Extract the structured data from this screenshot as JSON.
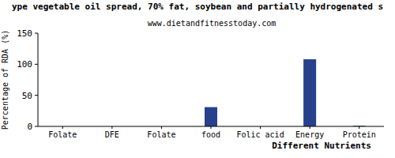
{
  "chart_data": {
    "type": "bar",
    "title": "ype vegetable oil spread, 70% fat, soybean and partially hydrogenated s",
    "subtitle": "www.dietandfitnesstoday.com",
    "x_label": "Different Nutrients",
    "y_label": "Percentage of RDA (%)",
    "categories": [
      "Folate",
      "DFE",
      "Folate",
      "food",
      "Folic acid",
      "Energy",
      "Protein"
    ],
    "values": [
      0,
      0,
      0,
      31,
      0,
      108,
      1
    ],
    "color": "#27418c",
    "ylim": [
      0,
      150
    ],
    "yticks": [
      0,
      50,
      100,
      150
    ],
    "grid": false
  }
}
